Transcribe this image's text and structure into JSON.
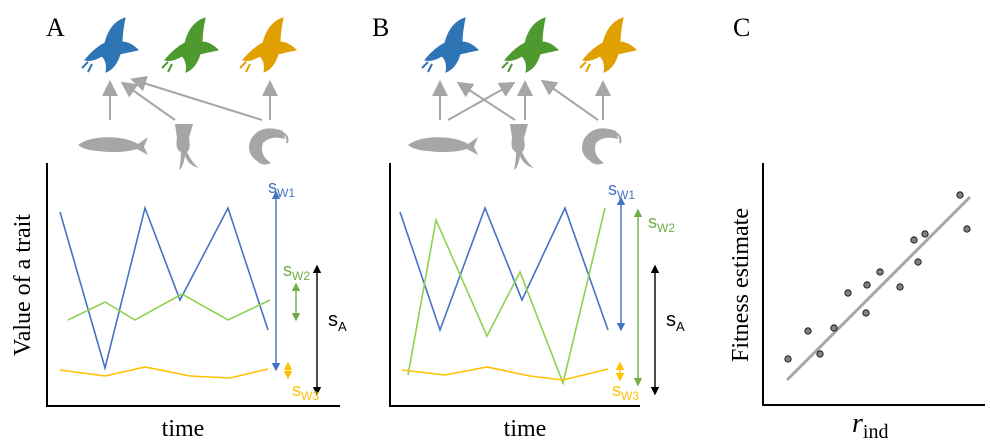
{
  "panels": [
    {
      "letter": "A",
      "y_label": "Value of a trait",
      "x_label": "time",
      "annotations": [
        {
          "base": "s",
          "sub": "W1"
        },
        {
          "base": "s",
          "sub": "W2"
        },
        {
          "base": "s",
          "sub": "A"
        },
        {
          "base": "s",
          "sub": "W3"
        }
      ]
    },
    {
      "letter": "B",
      "x_label": "time",
      "annotations": [
        {
          "base": "s",
          "sub": "W1"
        },
        {
          "base": "s",
          "sub": "W2"
        },
        {
          "base": "s",
          "sub": "A"
        },
        {
          "base": "s",
          "sub": "W3"
        }
      ]
    },
    {
      "letter": "C",
      "y_label": "Fitness estimate",
      "x_label": {
        "base": "r",
        "sub": "ind"
      }
    }
  ]
}
